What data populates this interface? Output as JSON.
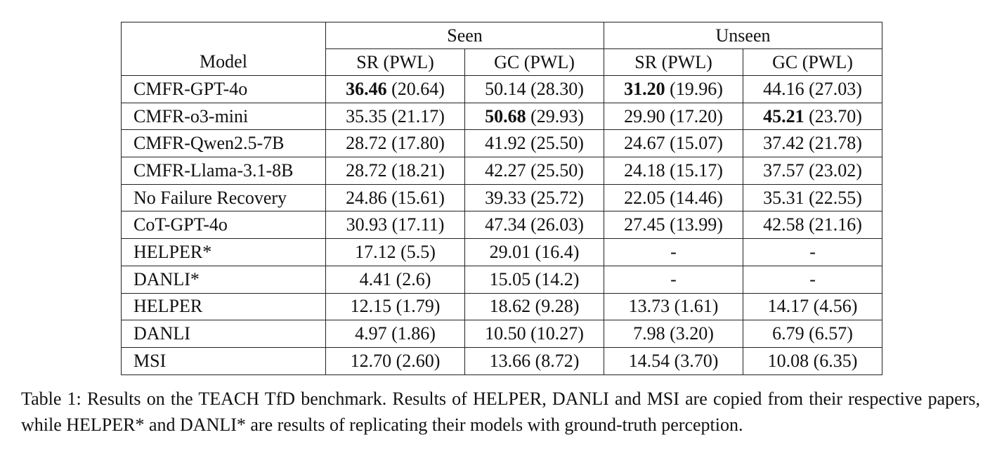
{
  "table": {
    "groups": [
      "Seen",
      "Unseen"
    ],
    "model_header": "Model",
    "columns": [
      "SR (PWL)",
      "GC (PWL)",
      "SR (PWL)",
      "GC (PWL)"
    ],
    "rows": [
      {
        "model": "CMFR-GPT-4o",
        "cells": [
          {
            "main": "36.46",
            "paren": " (20.64)",
            "bold": true
          },
          {
            "main": "50.14",
            "paren": " (28.30)",
            "bold": false
          },
          {
            "main": "31.20",
            "paren": " (19.96)",
            "bold": true
          },
          {
            "main": "44.16",
            "paren": " (27.03)",
            "bold": false
          }
        ]
      },
      {
        "model": "CMFR-o3-mini",
        "cells": [
          {
            "main": "35.35",
            "paren": " (21.17)",
            "bold": false
          },
          {
            "main": "50.68",
            "paren": " (29.93)",
            "bold": true
          },
          {
            "main": "29.90",
            "paren": " (17.20)",
            "bold": false
          },
          {
            "main": "45.21",
            "paren": " (23.70)",
            "bold": true
          }
        ]
      },
      {
        "model": "CMFR-Qwen2.5-7B",
        "cells": [
          {
            "main": "28.72",
            "paren": " (17.80)",
            "bold": false
          },
          {
            "main": "41.92",
            "paren": " (25.50)",
            "bold": false
          },
          {
            "main": "24.67",
            "paren": " (15.07)",
            "bold": false
          },
          {
            "main": "37.42",
            "paren": " (21.78)",
            "bold": false
          }
        ]
      },
      {
        "model": "CMFR-Llama-3.1-8B",
        "cells": [
          {
            "main": "28.72",
            "paren": " (18.21)",
            "bold": false
          },
          {
            "main": "42.27",
            "paren": " (25.50)",
            "bold": false
          },
          {
            "main": "24.18",
            "paren": " (15.17)",
            "bold": false
          },
          {
            "main": "37.57",
            "paren": " (23.02)",
            "bold": false
          }
        ]
      },
      {
        "model": "No Failure Recovery",
        "cells": [
          {
            "main": "24.86",
            "paren": " (15.61)",
            "bold": false
          },
          {
            "main": "39.33",
            "paren": " (25.72)",
            "bold": false
          },
          {
            "main": "22.05",
            "paren": " (14.46)",
            "bold": false
          },
          {
            "main": "35.31",
            "paren": " (22.55)",
            "bold": false
          }
        ]
      },
      {
        "model": "CoT-GPT-4o",
        "cells": [
          {
            "main": "30.93",
            "paren": " (17.11)",
            "bold": false
          },
          {
            "main": "47.34",
            "paren": " (26.03)",
            "bold": false
          },
          {
            "main": "27.45",
            "paren": " (13.99)",
            "bold": false
          },
          {
            "main": "42.58",
            "paren": " (21.16)",
            "bold": false
          }
        ]
      },
      {
        "model": "HELPER*",
        "cells": [
          {
            "main": "17.12",
            "paren": " (5.5)",
            "bold": false
          },
          {
            "main": "29.01",
            "paren": " (16.4)",
            "bold": false
          },
          {
            "main": "-",
            "paren": "",
            "bold": false
          },
          {
            "main": "-",
            "paren": "",
            "bold": false
          }
        ]
      },
      {
        "model": "DANLI*",
        "cells": [
          {
            "main": "4.41",
            "paren": " (2.6)",
            "bold": false
          },
          {
            "main": "15.05",
            "paren": " (14.2)",
            "bold": false
          },
          {
            "main": "-",
            "paren": "",
            "bold": false
          },
          {
            "main": "-",
            "paren": "",
            "bold": false
          }
        ]
      },
      {
        "model": "HELPER",
        "cells": [
          {
            "main": "12.15",
            "paren": " (1.79)",
            "bold": false
          },
          {
            "main": "18.62",
            "paren": " (9.28)",
            "bold": false
          },
          {
            "main": "13.73",
            "paren": " (1.61)",
            "bold": false
          },
          {
            "main": "14.17",
            "paren": " (4.56)",
            "bold": false
          }
        ]
      },
      {
        "model": "DANLI",
        "cells": [
          {
            "main": "4.97",
            "paren": " (1.86)",
            "bold": false
          },
          {
            "main": "10.50",
            "paren": " (10.27)",
            "bold": false
          },
          {
            "main": "7.98",
            "paren": " (3.20)",
            "bold": false
          },
          {
            "main": "6.79",
            "paren": " (6.57)",
            "bold": false
          }
        ]
      },
      {
        "model": "MSI",
        "cells": [
          {
            "main": "12.70",
            "paren": " (2.60)",
            "bold": false
          },
          {
            "main": "13.66",
            "paren": " (8.72)",
            "bold": false
          },
          {
            "main": "14.54",
            "paren": " (3.70)",
            "bold": false
          },
          {
            "main": "10.08",
            "paren": " (6.35)",
            "bold": false
          }
        ]
      }
    ]
  },
  "caption": "Table 1: Results on the TEACH TfD benchmark. Results of HELPER, DANLI and MSI are copied from their respective papers, while HELPER* and DANLI* are results of replicating their models with ground-truth perception."
}
